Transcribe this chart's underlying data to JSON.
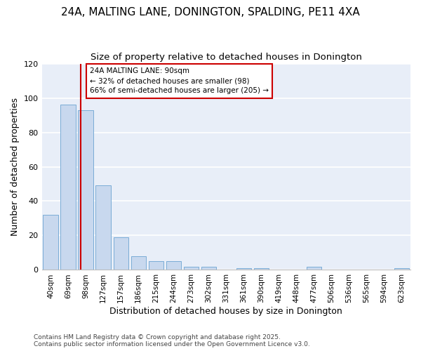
{
  "title1": "24A, MALTING LANE, DONINGTON, SPALDING, PE11 4XA",
  "title2": "Size of property relative to detached houses in Donington",
  "xlabel": "Distribution of detached houses by size in Donington",
  "ylabel": "Number of detached properties",
  "categories": [
    "40sqm",
    "69sqm",
    "98sqm",
    "127sqm",
    "157sqm",
    "186sqm",
    "215sqm",
    "244sqm",
    "273sqm",
    "302sqm",
    "331sqm",
    "361sqm",
    "390sqm",
    "419sqm",
    "448sqm",
    "477sqm",
    "506sqm",
    "536sqm",
    "565sqm",
    "594sqm",
    "623sqm"
  ],
  "values": [
    32,
    96,
    93,
    49,
    19,
    8,
    5,
    5,
    2,
    2,
    0,
    1,
    1,
    0,
    0,
    2,
    0,
    0,
    0,
    0,
    1
  ],
  "bar_color": "#c8d8ee",
  "bar_edge_color": "#7aacd6",
  "ylim": [
    0,
    120
  ],
  "yticks": [
    0,
    20,
    40,
    60,
    80,
    100,
    120
  ],
  "annotation_text": "24A MALTING LANE: 90sqm\n← 32% of detached houses are smaller (98)\n66% of semi-detached houses are larger (205) →",
  "vline_color": "#cc0000",
  "footnote": "Contains HM Land Registry data © Crown copyright and database right 2025.\nContains public sector information licensed under the Open Government Licence v3.0.",
  "fig_background_color": "#ffffff",
  "plot_background_color": "#e8eef8",
  "grid_color": "#ffffff",
  "title_fontsize": 11,
  "subtitle_fontsize": 9.5,
  "tick_fontsize": 7.5,
  "ylabel_fontsize": 9,
  "xlabel_fontsize": 9,
  "footnote_fontsize": 6.5
}
